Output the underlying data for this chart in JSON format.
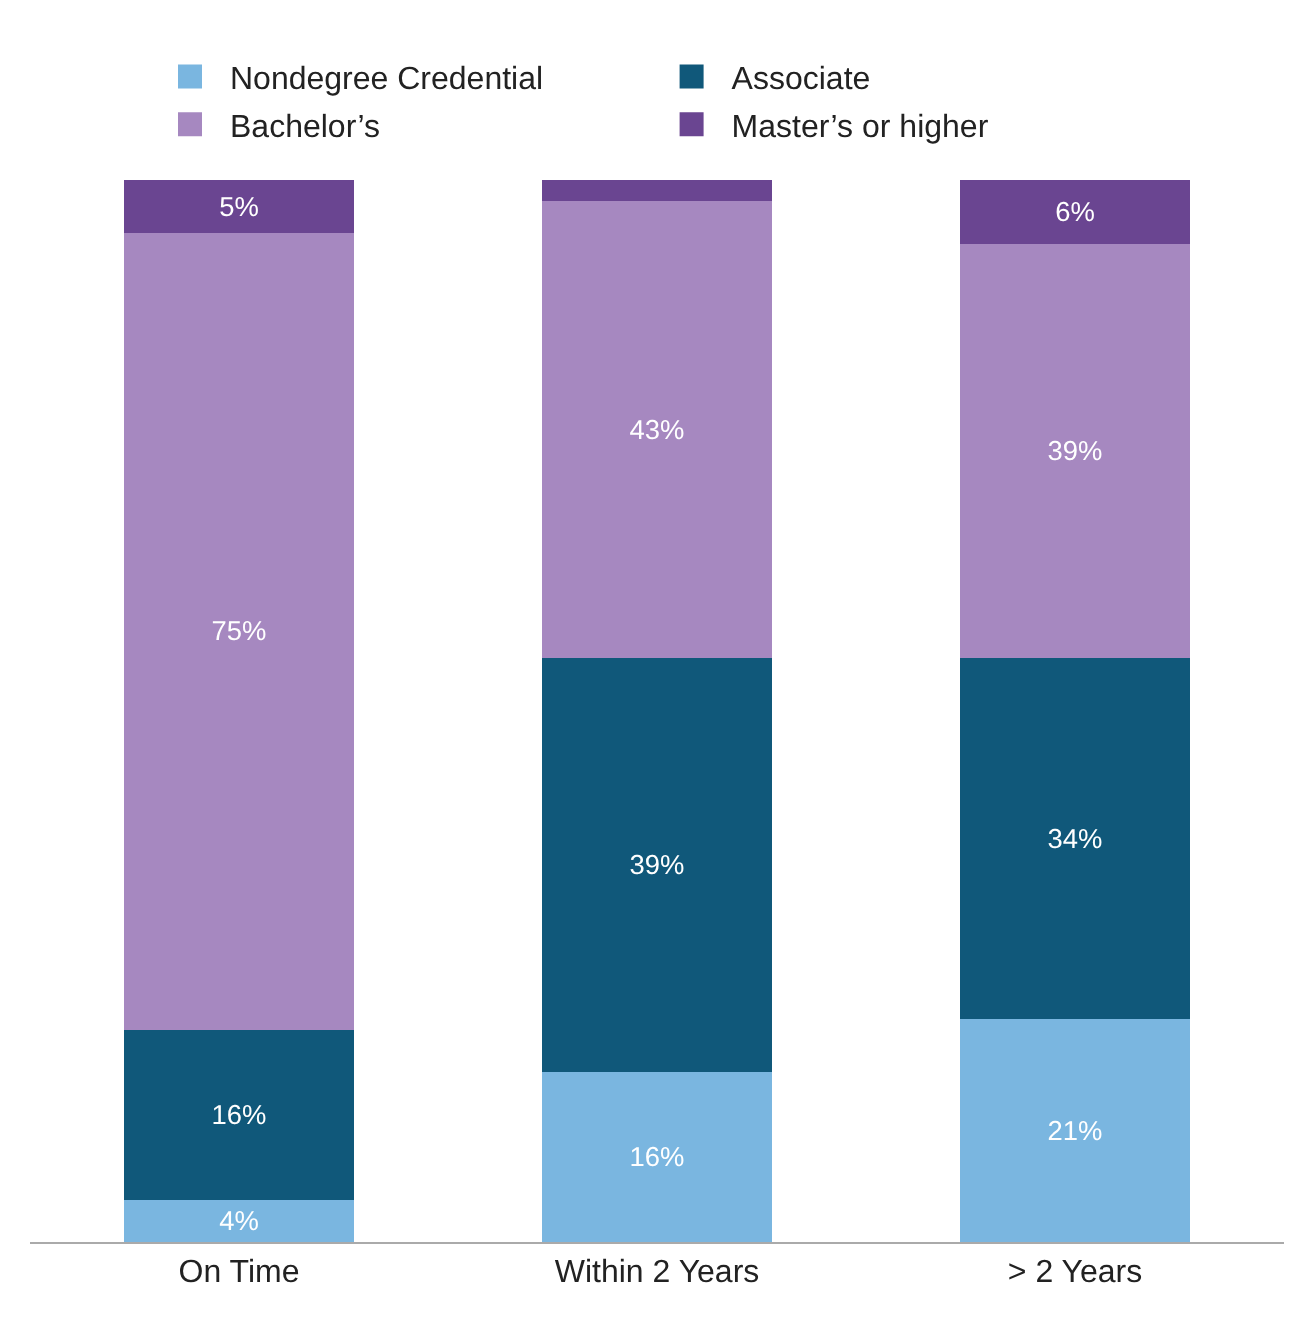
{
  "chart_data": {
    "type": "bar",
    "stacked": true,
    "legend": "top",
    "categories": [
      "On Time",
      "Within 2 Years",
      "> 2 Years"
    ],
    "ylim": [
      0,
      100
    ],
    "series": [
      {
        "name": "Nondegree Credential",
        "color": "#7ab6e0",
        "values": [
          4,
          16,
          21
        ],
        "value_labels": [
          "4%",
          "16%",
          "21%"
        ]
      },
      {
        "name": "Associate",
        "color": "#10587a",
        "values": [
          16,
          39,
          34
        ],
        "value_labels": [
          "16%",
          "39%",
          "34%"
        ]
      },
      {
        "name": "Bachelor’s",
        "color": "#a688c0",
        "values": [
          75,
          43,
          39
        ],
        "value_labels": [
          "75%",
          "43%",
          "39%"
        ]
      },
      {
        "name": "Master’s or higher",
        "color": "#6a4591",
        "values": [
          5,
          2,
          6
        ],
        "value_labels": [
          "5%",
          null,
          "6%"
        ]
      }
    ]
  }
}
